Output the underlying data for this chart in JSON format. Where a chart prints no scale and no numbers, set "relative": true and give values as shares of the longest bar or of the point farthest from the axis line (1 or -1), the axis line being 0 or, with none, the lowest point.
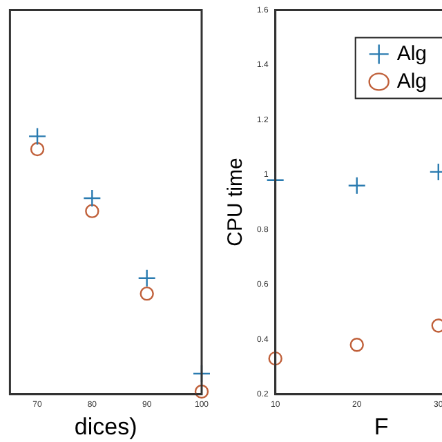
{
  "chart_data": [
    {
      "type": "scatter",
      "xlabel": "dices)",
      "relative": true,
      "xlim": [
        65,
        100
      ],
      "xticks": [
        70,
        80,
        90,
        100
      ],
      "tick_labels": "x",
      "grid": false,
      "legend": false,
      "x": [
        70,
        80,
        90,
        100
      ],
      "series": [
        {
          "color": "#2a7bb0",
          "marker": "cross",
          "values": [
            1,
            0.76,
            0.45,
            0.08
          ]
        },
        {
          "color": "#c0603a",
          "marker": "circle",
          "values": [
            0.95,
            0.71,
            0.39,
            0.01
          ]
        }
      ]
    },
    {
      "type": "scatter",
      "xlabel": "F",
      "ylabel": "CPU time",
      "xlim": [
        10,
        36
      ],
      "xticks": [
        10,
        20,
        30
      ],
      "ylim": [
        0.2,
        1.6
      ],
      "yticks": [
        0.2,
        0.4,
        0.6,
        0.8,
        1,
        1.2,
        1.4,
        1.6
      ],
      "grid": false,
      "legend": "top right",
      "x": [
        10,
        20,
        30
      ],
      "series": [
        {
          "name": "Alg",
          "color": "#2a7bb0",
          "marker": "cross",
          "values": [
            0.98,
            0.96,
            1.01
          ]
        },
        {
          "name": "Alg",
          "color": "#c0603a",
          "marker": "circle",
          "values": [
            0.33,
            0.38,
            0.45
          ]
        }
      ]
    }
  ]
}
